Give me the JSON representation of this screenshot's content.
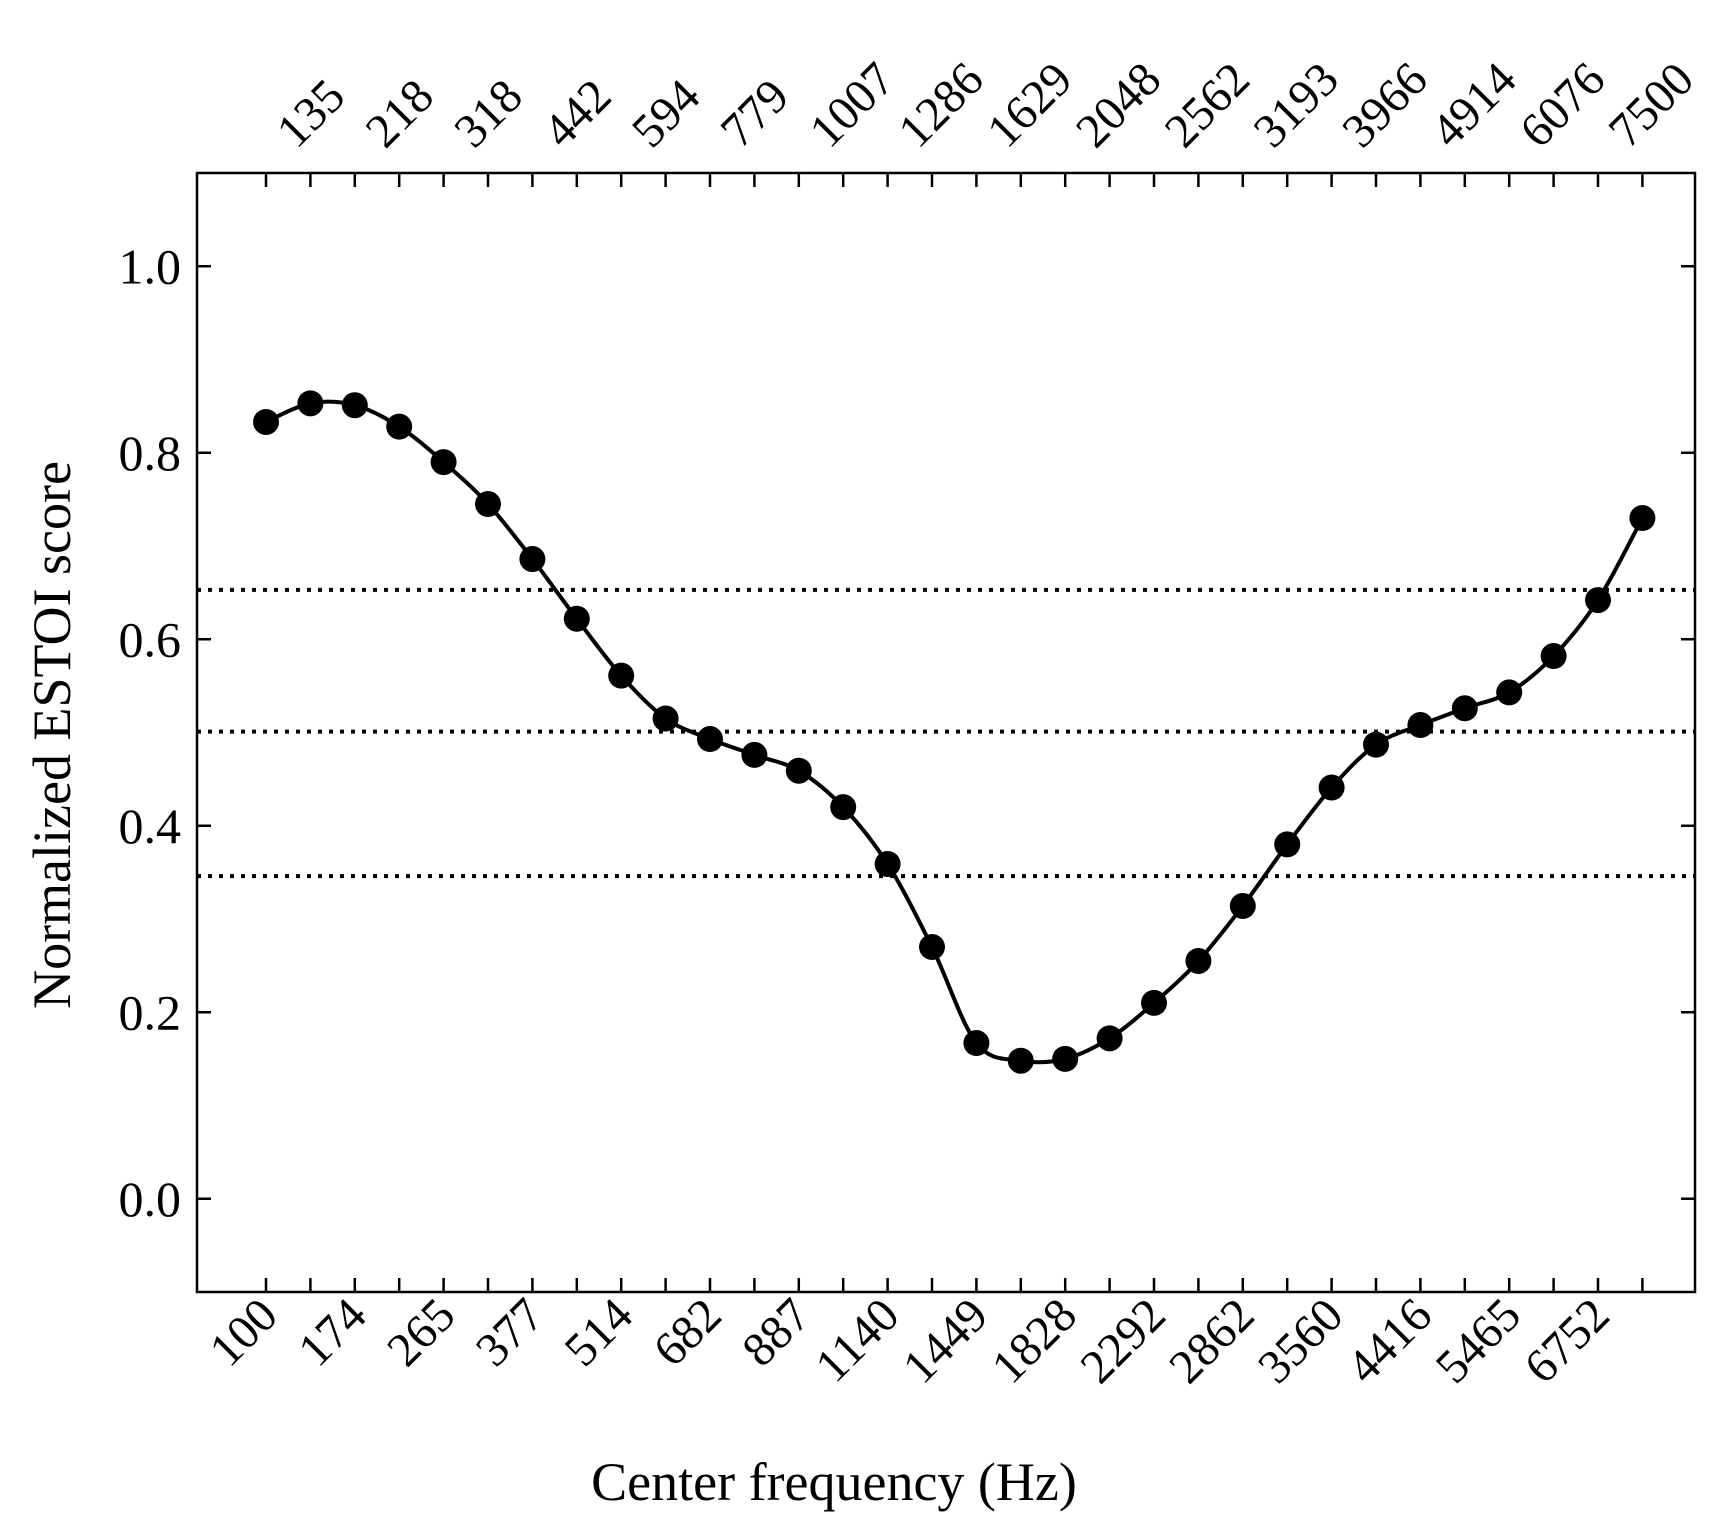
{
  "chart_data": {
    "type": "line",
    "xlabel": "Center frequency (Hz)",
    "ylabel": "Normalized ESTOI score",
    "bottom_tick_labels": [
      "100",
      "174",
      "265",
      "377",
      "514",
      "682",
      "887",
      "1140",
      "1449",
      "1828",
      "2292",
      "2862",
      "3560",
      "4416",
      "5465",
      "6752"
    ],
    "top_tick_labels": [
      "135",
      "218",
      "318",
      "442",
      "594",
      "779",
      "1007",
      "1286",
      "1629",
      "2048",
      "2562",
      "3193",
      "3966",
      "4914",
      "6076",
      "7500"
    ],
    "x": [
      "100",
      "135",
      "174",
      "218",
      "265",
      "318",
      "377",
      "442",
      "514",
      "594",
      "682",
      "779",
      "887",
      "1007",
      "1140",
      "1286",
      "1449",
      "1629",
      "1828",
      "2048",
      "2292",
      "2562",
      "2862",
      "3193",
      "3560",
      "3966",
      "4416",
      "4914",
      "5465",
      "6076",
      "6752",
      "7500"
    ],
    "y_ticks": [
      "0.0",
      "0.2",
      "0.4",
      "0.6",
      "0.8",
      "1.0"
    ],
    "ylim": [
      -0.1,
      1.1
    ],
    "series": [
      {
        "values": [
          0.833,
          0.853,
          0.851,
          0.828,
          0.79,
          0.745,
          0.686,
          0.622,
          0.561,
          0.515,
          0.493,
          0.476,
          0.459,
          0.42,
          0.359,
          0.27,
          0.167,
          0.148,
          0.15,
          0.172,
          0.21,
          0.255,
          0.314,
          0.38,
          0.441,
          0.487,
          0.508,
          0.526,
          0.543,
          0.582,
          0.642,
          0.73
        ],
        "color": "#000000",
        "marker": "filled-circle",
        "line": "smooth"
      }
    ],
    "reference_lines": [
      0.653,
      0.501,
      0.346
    ],
    "reference_line_style": "dotted",
    "grid": false,
    "legend": "none"
  }
}
